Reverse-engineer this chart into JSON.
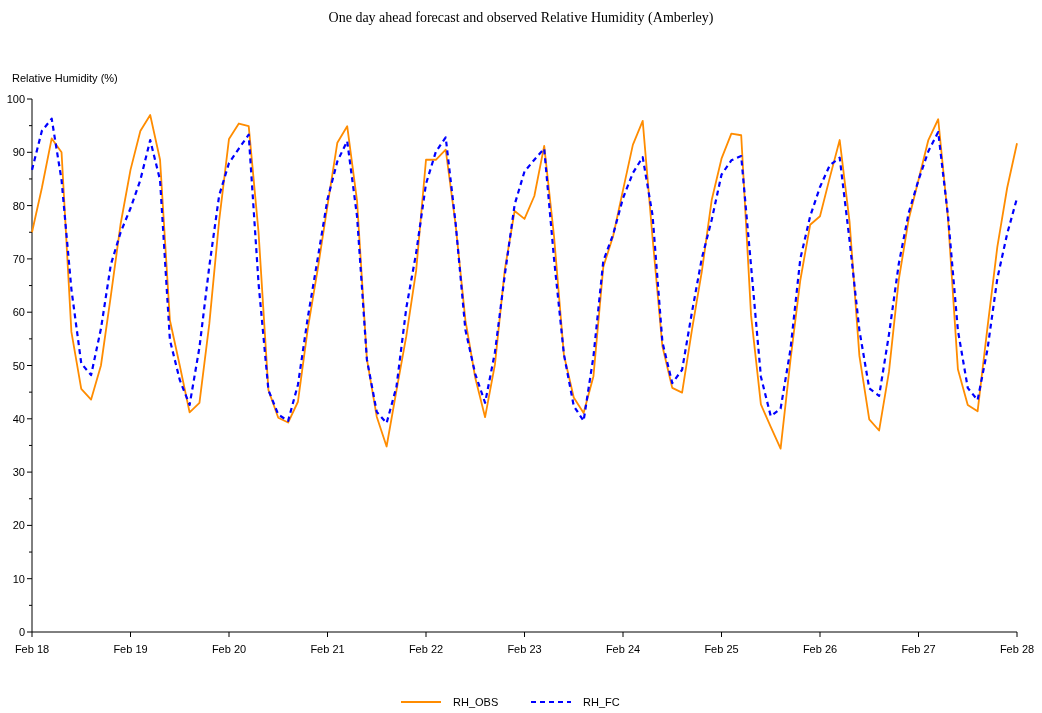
{
  "chart_data": {
    "type": "line",
    "title": "One day ahead forecast and observed Relative Humidity (Amberley)",
    "ylabel": "Relative Humidity (%)",
    "categories": [
      "Feb 18",
      null,
      null,
      null,
      null,
      null,
      null,
      null,
      null,
      null,
      "Feb 19",
      null,
      null,
      null,
      null,
      null,
      null,
      null,
      null,
      null,
      "Feb 20",
      null,
      null,
      null,
      null,
      null,
      null,
      null,
      null,
      null,
      "Feb 21",
      null,
      null,
      null,
      null,
      null,
      null,
      null,
      null,
      null,
      "Feb 22",
      null,
      null,
      null,
      null,
      null,
      null,
      null,
      null,
      null,
      "Feb 23",
      null,
      null,
      null,
      null,
      null,
      null,
      null,
      null,
      null,
      "Feb 24",
      null,
      null,
      null,
      null,
      null,
      null,
      null,
      null,
      null,
      "Feb 25",
      null,
      null,
      null,
      null,
      null,
      null,
      null,
      null,
      null,
      "Feb 26",
      null,
      null,
      null,
      null,
      null,
      null,
      null,
      null,
      null,
      "Feb 27",
      null,
      null,
      null,
      null,
      null,
      null,
      null,
      null,
      null,
      "Feb 28"
    ],
    "ylim": [
      0,
      100
    ],
    "yticks": [
      0,
      {
        "value": 5,
        "label": null
      },
      10,
      {
        "value": 15,
        "label": null
      },
      20,
      {
        "value": 25,
        "label": null
      },
      30,
      {
        "value": 35,
        "label": null
      },
      40,
      {
        "value": 45,
        "label": null
      },
      50,
      {
        "value": 55,
        "label": null
      },
      60,
      {
        "value": 65,
        "label": null
      },
      70,
      {
        "value": 75,
        "label": null
      },
      80,
      {
        "value": 85,
        "label": null
      },
      90,
      {
        "value": 95,
        "label": null
      },
      100
    ],
    "grid": false,
    "legend": "bottom",
    "marker": "none",
    "series": [
      {
        "name": "RH_OBS",
        "color": "#ff8c00",
        "line_style": "solid",
        "values": [
          75,
          83.3,
          92.6,
          90,
          56.3,
          45.6,
          43.6,
          50,
          63,
          76.6,
          86.7,
          94,
          97,
          88.6,
          58.5,
          50,
          41.2,
          43,
          57.8,
          77.2,
          92.5,
          95.4,
          94.9,
          75,
          45.4,
          40.2,
          39.3,
          43.2,
          56.9,
          68,
          80,
          91.8,
          94.9,
          80.9,
          51.2,
          40.4,
          34.8,
          45.3,
          55.5,
          67.8,
          88.6,
          88.6,
          90.5,
          76.5,
          58.5,
          47.7,
          40.3,
          50.2,
          68,
          79,
          77.5,
          81.8,
          91.2,
          74.2,
          52,
          44,
          41.1,
          48,
          68.5,
          74.3,
          82.9,
          91.4,
          95.9,
          74,
          53.6,
          45.8,
          44.9,
          56.7,
          67.6,
          81,
          88.8,
          93.5,
          93.2,
          59.4,
          42.7,
          38.5,
          34.4,
          51,
          66,
          76.4,
          78,
          85.3,
          92.3,
          77,
          51.8,
          39.9,
          37.8,
          48.8,
          66.1,
          77.4,
          84.8,
          92.3,
          96.2,
          77.5,
          49.3,
          42.6,
          41.4,
          57.1,
          72.2,
          83.3,
          91.7
        ]
      },
      {
        "name": "RH_FC",
        "color": "#0000ff",
        "line_style": "dashed",
        "values": [
          86.7,
          94,
          96.3,
          84.8,
          64.3,
          50.4,
          48.2,
          56.9,
          68.9,
          75,
          79.5,
          84.8,
          92.3,
          84.8,
          54.8,
          47.3,
          42.6,
          53.4,
          68.6,
          81.9,
          88,
          90.7,
          93.3,
          65.4,
          45.4,
          40.8,
          39.6,
          46.4,
          59,
          70,
          81.2,
          88.3,
          92.1,
          78,
          51.1,
          41.3,
          39.2,
          46,
          60.8,
          71.1,
          84.1,
          90.1,
          92.8,
          76.8,
          56.7,
          48.4,
          43,
          52.5,
          67,
          80.2,
          86.4,
          88.6,
          90.7,
          70,
          52.1,
          42.4,
          39.6,
          51.7,
          69.6,
          74.6,
          81.4,
          86.1,
          89.1,
          78.2,
          54.4,
          46.7,
          49.2,
          60,
          70.1,
          77.3,
          85.8,
          88.5,
          89.3,
          68.7,
          47.9,
          40.5,
          41.9,
          53,
          70,
          78,
          83.5,
          87.6,
          89,
          73.5,
          56.6,
          45.7,
          44.3,
          55.8,
          69.1,
          78.6,
          84.8,
          90.2,
          93.8,
          78,
          56.6,
          45.8,
          43.5,
          53,
          66.3,
          74.7,
          81.4
        ]
      }
    ]
  }
}
